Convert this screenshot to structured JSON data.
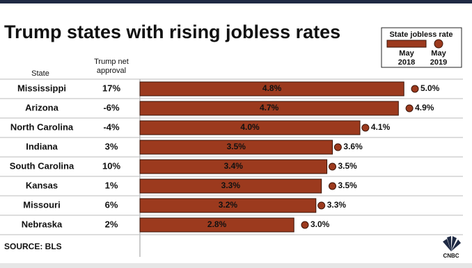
{
  "chart_data": {
    "type": "bar",
    "title": "Trump states with rising jobless rates",
    "legend_title": "State jobless rate",
    "columns": [
      "State",
      "Trump net approval"
    ],
    "categories": [
      "Mississippi",
      "Arizona",
      "North Carolina",
      "Indiana",
      "South Carolina",
      "Kansas",
      "Missouri",
      "Nebraska"
    ],
    "approval": [
      "17%",
      "-6%",
      "-4%",
      "3%",
      "10%",
      "1%",
      "6%",
      "2%"
    ],
    "series": [
      {
        "name": "May 2018",
        "color": "#9c3a1e",
        "values": [
          4.8,
          4.7,
          4.0,
          3.5,
          3.4,
          3.3,
          3.2,
          2.8
        ],
        "value_labels": [
          "4.8%",
          "4.7%",
          "4.0%",
          "3.5%",
          "3.4%",
          "3.3%",
          "3.2%",
          "2.8%"
        ]
      },
      {
        "name": "May 2019",
        "color": "#9c3a1e",
        "values": [
          5.0,
          4.9,
          4.1,
          3.6,
          3.5,
          3.5,
          3.3,
          3.0
        ],
        "value_labels": [
          "5.0%",
          "4.9%",
          "4.1%",
          "3.6%",
          "3.5%",
          "3.5%",
          "3.3%",
          "3.0%"
        ]
      }
    ],
    "source": "SOURCE: BLS",
    "logo": "CNBC"
  }
}
